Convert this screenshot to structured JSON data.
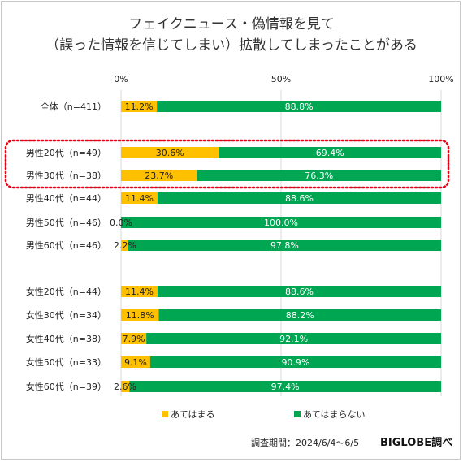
{
  "title_line1": "フェイクニュース・偽情報を見て",
  "title_line2": "（誤った情報を信じてしまい）拡散してしまったことがある",
  "survey_period": "調査期間：2024/6/4～6/5",
  "brand": "BIGLOBE調べ",
  "chart_data": {
    "type": "bar",
    "orientation": "horizontal",
    "stacked": true,
    "xlim": [
      0,
      100
    ],
    "x_ticks": [
      "0%",
      "50%",
      "100%"
    ],
    "grid": true,
    "legend_position": "bottom",
    "highlight_rows": [
      "男性20代（n=49）",
      "男性30代（n=38）"
    ],
    "categories": [
      "全体（n=411）",
      "男性20代（n=49）",
      "男性30代（n=38）",
      "男性40代（n=44）",
      "男性50代（n=46）",
      "男性60代（n=46）",
      "女性20代（n=44）",
      "女性30代（n=34）",
      "女性40代（n=38）",
      "女性50代（n=33）",
      "女性60代（n=39）"
    ],
    "series": [
      {
        "name": "あてはまる",
        "color": "#ffc000",
        "values": [
          11.2,
          30.6,
          23.7,
          11.4,
          0.0,
          2.2,
          11.4,
          11.8,
          7.9,
          9.1,
          2.6
        ],
        "labels": [
          "11.2%",
          "30.6%",
          "23.7%",
          "11.4%",
          "0.0%",
          "2.2%",
          "11.4%",
          "11.8%",
          "7.9%",
          "9.1%",
          "2.6%"
        ]
      },
      {
        "name": "あてはまらない",
        "color": "#00a651",
        "values": [
          88.8,
          69.4,
          76.3,
          88.6,
          100.0,
          97.8,
          88.6,
          88.2,
          92.1,
          90.9,
          97.4
        ],
        "labels": [
          "88.8%",
          "69.4%",
          "76.3%",
          "88.6%",
          "100.0%",
          "97.8%",
          "88.6%",
          "88.2%",
          "92.1%",
          "90.9%",
          "97.4%"
        ]
      }
    ]
  }
}
